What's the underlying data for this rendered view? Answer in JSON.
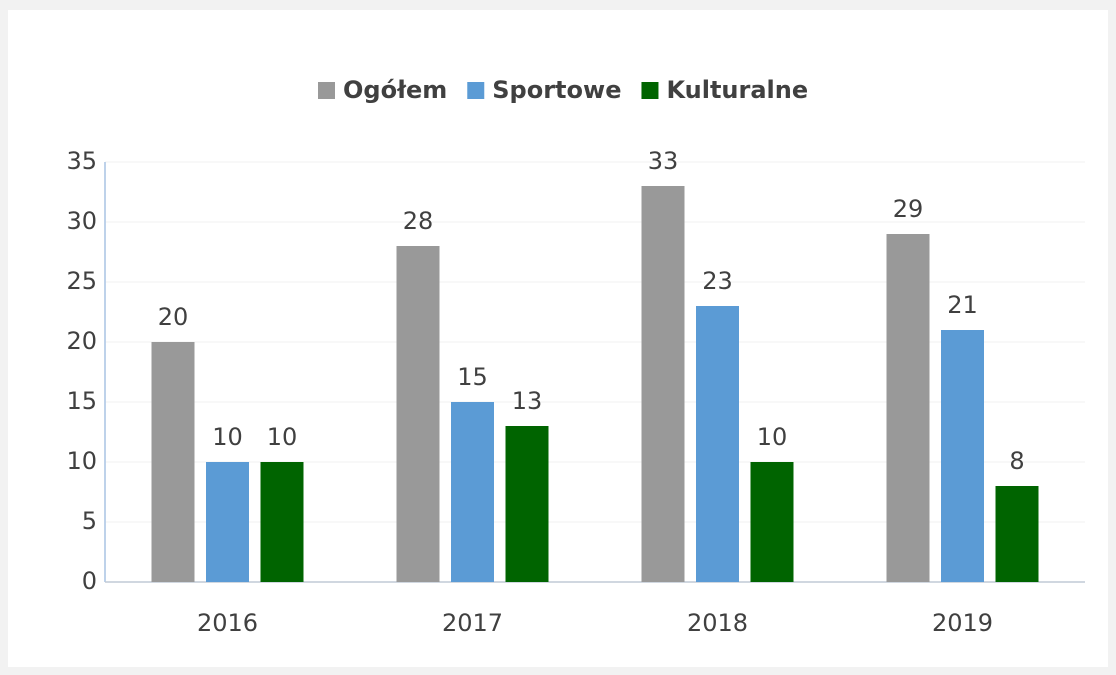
{
  "chart_data": {
    "type": "bar",
    "categories": [
      "2016",
      "2017",
      "2018",
      "2019"
    ],
    "series": [
      {
        "name": "Ogółem",
        "color": "#999999",
        "values": [
          20,
          28,
          33,
          29
        ]
      },
      {
        "name": "Sportowe",
        "color": "#5b9bd5",
        "values": [
          10,
          15,
          23,
          21
        ]
      },
      {
        "name": "Kulturalne",
        "color": "#006400",
        "values": [
          10,
          13,
          10,
          8
        ]
      }
    ],
    "ylim": [
      0,
      35
    ],
    "yticks": [
      0,
      5,
      10,
      15,
      20,
      25,
      30,
      35
    ],
    "grid": true,
    "legend": "top"
  }
}
